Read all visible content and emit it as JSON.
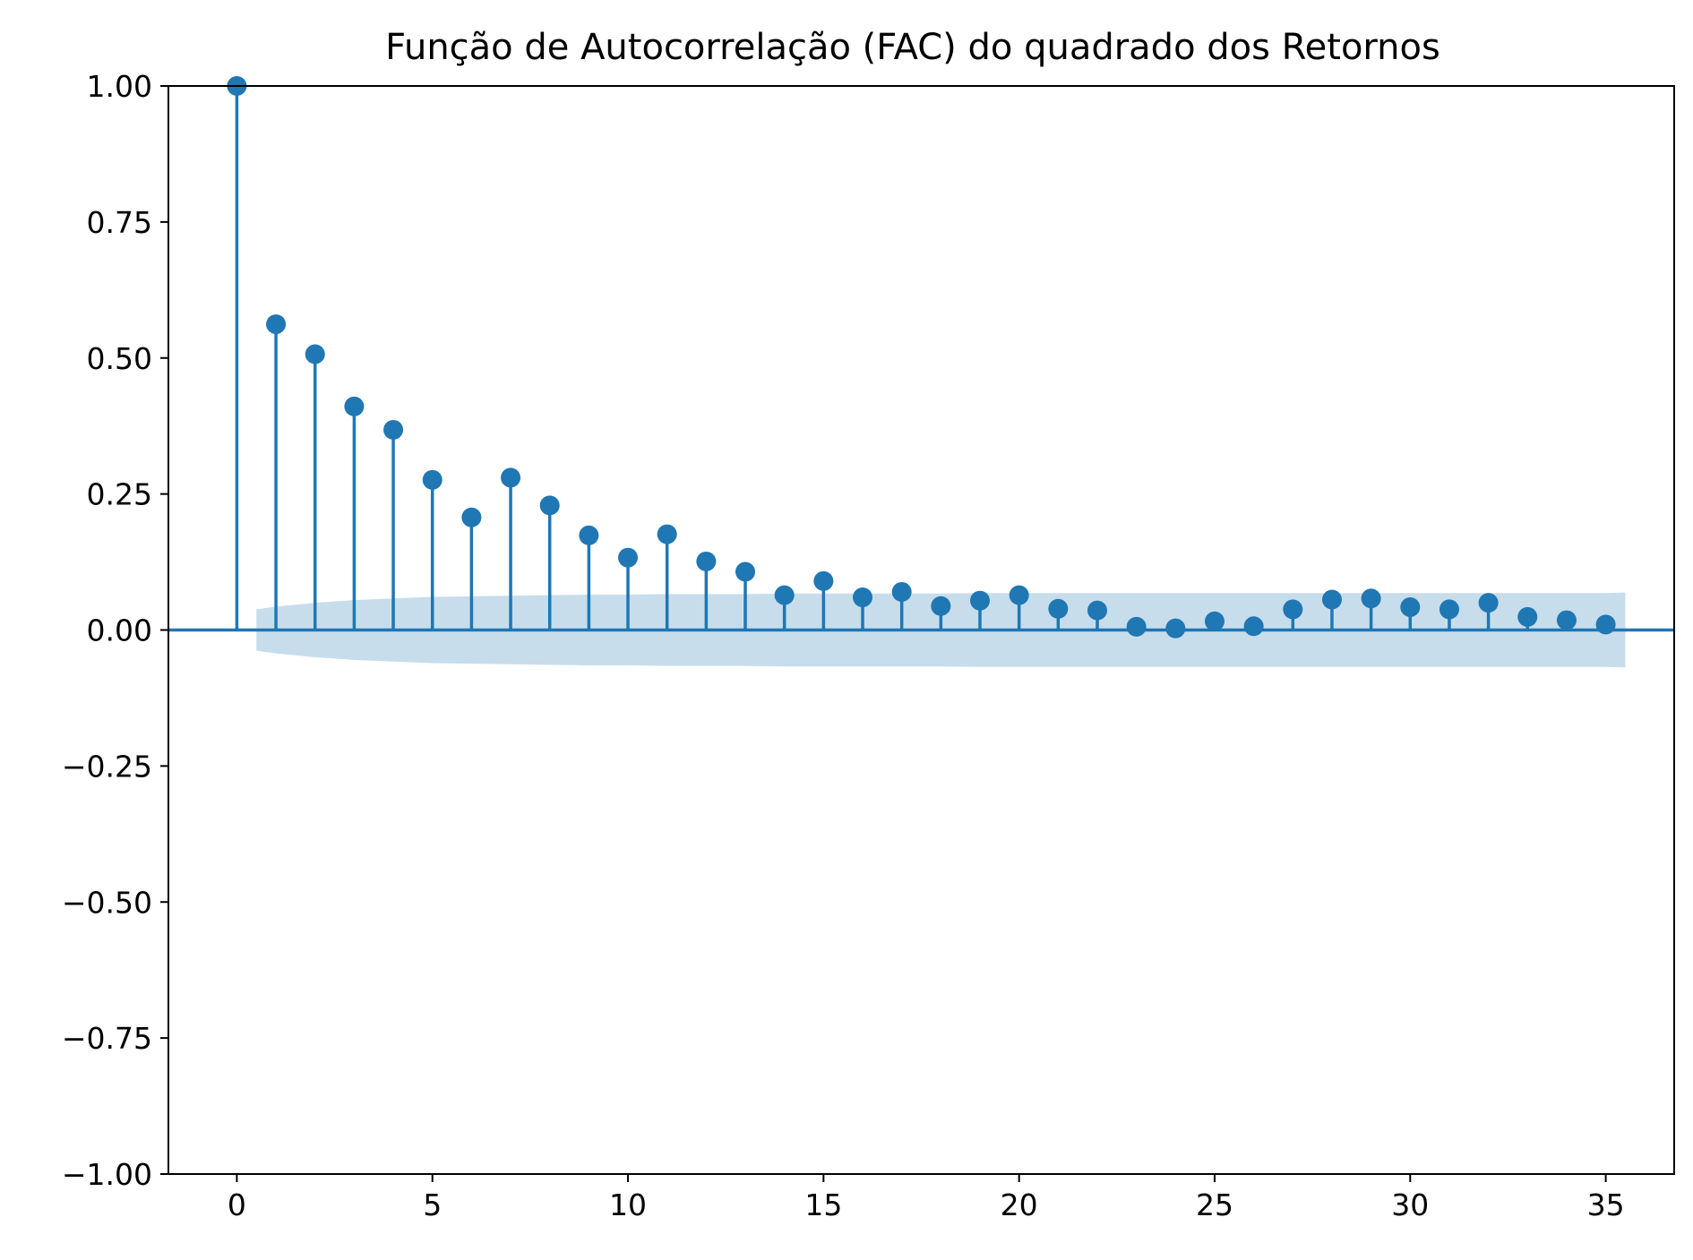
{
  "chart_data": {
    "type": "stem",
    "title": "Função de Autocorrelação (FAC) do quadrado dos Retornos",
    "xlabel": "",
    "ylabel": "",
    "xlim": [
      -1.75,
      36.75
    ],
    "ylim": [
      -1.0,
      1.0
    ],
    "x_ticks": [
      0,
      5,
      10,
      15,
      20,
      25,
      30,
      35
    ],
    "y_ticks": [
      -1.0,
      -0.75,
      -0.5,
      -0.25,
      0.0,
      0.25,
      0.5,
      0.75,
      1.0
    ],
    "x_tick_labels": [
      "0",
      "5",
      "10",
      "15",
      "20",
      "25",
      "30",
      "35"
    ],
    "y_tick_labels": [
      "−1.00",
      "−0.75",
      "−0.50",
      "−0.25",
      "0.00",
      "0.25",
      "0.50",
      "0.75",
      "1.00"
    ],
    "grid": false,
    "colors": {
      "series": "#1f77b4",
      "band": "#1f77b4"
    },
    "series": [
      {
        "lags": [
          0,
          1,
          2,
          3,
          4,
          5,
          6,
          7,
          8,
          9,
          10,
          11,
          12,
          13,
          14,
          15,
          16,
          17,
          18,
          19,
          20,
          21,
          22,
          23,
          24,
          25,
          26,
          27,
          28,
          29,
          30,
          31,
          32,
          33,
          34,
          35
        ],
        "values": [
          1.0,
          0.562,
          0.507,
          0.411,
          0.368,
          0.276,
          0.207,
          0.28,
          0.229,
          0.174,
          0.133,
          0.176,
          0.126,
          0.107,
          0.064,
          0.09,
          0.06,
          0.07,
          0.044,
          0.054,
          0.064,
          0.039,
          0.036,
          0.006,
          0.003,
          0.016,
          0.007,
          0.038,
          0.056,
          0.058,
          0.042,
          0.038,
          0.05,
          0.024,
          0.018,
          0.01
        ]
      }
    ],
    "confidence_band": {
      "lags": [
        0.5,
        1,
        2,
        3,
        4,
        5,
        6,
        7,
        8,
        9,
        10,
        11,
        12,
        13,
        14,
        15,
        16,
        17,
        18,
        19,
        20,
        21,
        22,
        23,
        24,
        25,
        26,
        27,
        28,
        29,
        30,
        31,
        32,
        33,
        34,
        35,
        35.5
      ],
      "upper": [
        0.038,
        0.043,
        0.05,
        0.055,
        0.058,
        0.061,
        0.062,
        0.063,
        0.064,
        0.065,
        0.065,
        0.066,
        0.066,
        0.066,
        0.067,
        0.067,
        0.067,
        0.067,
        0.067,
        0.068,
        0.068,
        0.068,
        0.068,
        0.068,
        0.068,
        0.068,
        0.068,
        0.068,
        0.068,
        0.068,
        0.068,
        0.068,
        0.068,
        0.068,
        0.068,
        0.068,
        0.069
      ]
    }
  }
}
